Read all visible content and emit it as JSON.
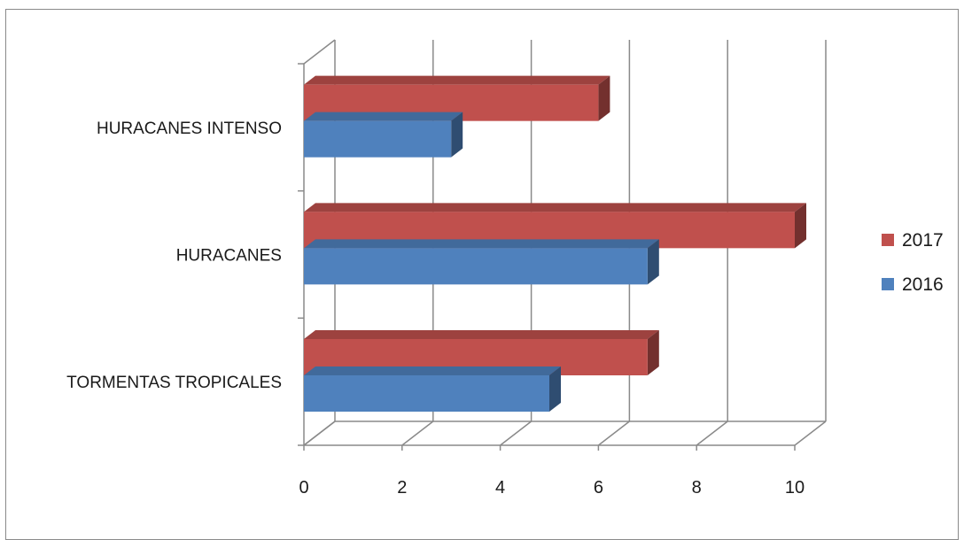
{
  "chart_data": {
    "type": "bar",
    "orientation": "horizontal",
    "style": "3d-clustered-bar",
    "categories": [
      "TORMENTAS TROPICALES",
      "HURACANES",
      "HURACANES INTENSO"
    ],
    "series": [
      {
        "name": "2016",
        "values": [
          5,
          7,
          3
        ],
        "color": "#4f81bd"
      },
      {
        "name": "2017",
        "values": [
          7,
          10,
          6
        ],
        "color": "#c0504d"
      }
    ],
    "xlim": [
      0,
      10
    ],
    "xticks": [
      "0",
      "2",
      "4",
      "6",
      "8",
      "10"
    ],
    "legend": {
      "position": "right",
      "entries": [
        "2017",
        "2016"
      ]
    },
    "grid": true
  }
}
